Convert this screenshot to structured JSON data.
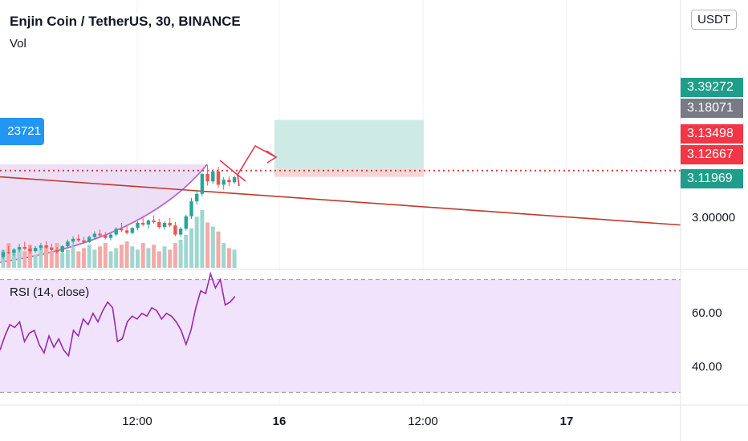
{
  "header": {
    "title": "Enjin Coin / TetherUS, 30, BINANCE",
    "vol_label": "Vol",
    "currency": "USDT",
    "left_tag": "23721"
  },
  "rsi": {
    "label": "RSI (14, close)"
  },
  "colors": {
    "up": "#26a69a",
    "down": "#ef5350",
    "rsi_line": "#9c27b0",
    "rsi_band": "#f0e3fb",
    "trendline": "#c0392b",
    "target_zone": "#cdeae5",
    "stop_zone": "#f9d5d5"
  },
  "price_tags": [
    {
      "text": "3.39272",
      "color": "#1e9e8a"
    },
    {
      "text": "3.18071",
      "color": "#787b86"
    },
    {
      "text": "3.13498",
      "color": "#f23645"
    },
    {
      "text": "3.12667",
      "color": "#f23645"
    },
    {
      "text": "3.11969",
      "color": "#1e9e8a"
    }
  ],
  "chart_data": [
    {
      "type": "candlestick",
      "title": "Enjin Coin / TetherUS, 30, BINANCE",
      "x_ticks": [
        "12:00",
        "16",
        "12:00",
        "17"
      ],
      "y_ticks": [
        "3.00000"
      ],
      "ylim": [
        2.89,
        3.45
      ],
      "ohlc": [
        [
          2.918,
          2.935,
          2.912,
          2.93
        ],
        [
          2.93,
          2.945,
          2.925,
          2.928
        ],
        [
          2.928,
          2.94,
          2.92,
          2.936
        ],
        [
          2.936,
          2.95,
          2.93,
          2.942
        ],
        [
          2.942,
          2.955,
          2.935,
          2.938
        ],
        [
          2.938,
          2.946,
          2.926,
          2.932
        ],
        [
          2.932,
          2.944,
          2.928,
          2.94
        ],
        [
          2.94,
          2.952,
          2.934,
          2.946
        ],
        [
          2.946,
          2.956,
          2.938,
          2.941
        ],
        [
          2.941,
          2.95,
          2.932,
          2.935
        ],
        [
          2.935,
          2.942,
          2.926,
          2.93
        ],
        [
          2.93,
          2.946,
          2.928,
          2.944
        ],
        [
          2.944,
          2.96,
          2.94,
          2.955
        ],
        [
          2.955,
          2.968,
          2.948,
          2.962
        ],
        [
          2.962,
          2.972,
          2.954,
          2.958
        ],
        [
          2.958,
          2.966,
          2.95,
          2.954
        ],
        [
          2.954,
          2.97,
          2.952,
          2.966
        ],
        [
          2.966,
          2.98,
          2.96,
          2.974
        ],
        [
          2.974,
          2.984,
          2.966,
          2.97
        ],
        [
          2.97,
          2.978,
          2.96,
          2.964
        ],
        [
          2.964,
          2.975,
          2.958,
          2.972
        ],
        [
          2.972,
          2.99,
          2.968,
          2.986
        ],
        [
          2.986,
          3.0,
          2.978,
          2.982
        ],
        [
          2.982,
          2.992,
          2.972,
          2.976
        ],
        [
          2.976,
          2.99,
          2.972,
          2.988
        ],
        [
          2.988,
          3.004,
          2.982,
          3.0
        ],
        [
          3.0,
          3.012,
          2.992,
          2.996
        ],
        [
          2.996,
          3.008,
          2.986,
          3.006
        ],
        [
          3.006,
          3.018,
          2.998,
          3.002
        ],
        [
          3.002,
          3.01,
          2.986,
          2.99
        ],
        [
          2.99,
          3.004,
          2.984,
          3.0
        ],
        [
          3.0,
          3.012,
          2.99,
          2.994
        ],
        [
          2.994,
          3.002,
          2.968,
          2.972
        ],
        [
          2.972,
          2.99,
          2.966,
          2.986
        ],
        [
          2.986,
          3.02,
          2.982,
          3.016
        ],
        [
          3.016,
          3.06,
          3.01,
          3.052
        ],
        [
          3.052,
          3.08,
          3.044,
          3.07
        ],
        [
          3.07,
          3.12,
          3.064,
          3.118
        ],
        [
          3.118,
          3.14,
          3.09,
          3.1
        ],
        [
          3.1,
          3.13,
          3.094,
          3.124
        ],
        [
          3.124,
          3.135,
          3.085,
          3.092
        ],
        [
          3.092,
          3.11,
          3.08,
          3.104
        ],
        [
          3.104,
          3.112,
          3.088,
          3.098
        ],
        [
          3.098,
          3.114,
          3.094,
          3.11
        ]
      ],
      "volume": [
        22,
        30,
        18,
        25,
        20,
        28,
        16,
        24,
        26,
        20,
        30,
        18,
        22,
        26,
        20,
        24,
        28,
        22,
        26,
        30,
        20,
        24,
        28,
        32,
        26,
        22,
        30,
        24,
        28,
        20,
        26,
        22,
        30,
        34,
        40,
        48,
        62,
        70,
        55,
        50,
        44,
        30,
        24,
        22
      ],
      "trendline": [
        [
          0,
          3.111
        ],
        [
          848,
          2.995
        ]
      ],
      "position": {
        "target": 3.248,
        "entry": 3.13,
        "stop": 3.111
      }
    },
    {
      "type": "line",
      "title": "RSI (14, close)",
      "y_ticks": [
        "60.00",
        "40.00"
      ],
      "ylim": [
        27,
        73
      ],
      "bands": [
        70,
        30
      ],
      "values": [
        45,
        50,
        54,
        53,
        55,
        48,
        51,
        52,
        47,
        44,
        50,
        46,
        49,
        45,
        43,
        52,
        50,
        56,
        54,
        58,
        55,
        59,
        62,
        60,
        48,
        49,
        55,
        57,
        56,
        58,
        57,
        60,
        59,
        56,
        58,
        57,
        55,
        52,
        47,
        52,
        60,
        66,
        65,
        72,
        67,
        70,
        61,
        62,
        64
      ]
    }
  ]
}
